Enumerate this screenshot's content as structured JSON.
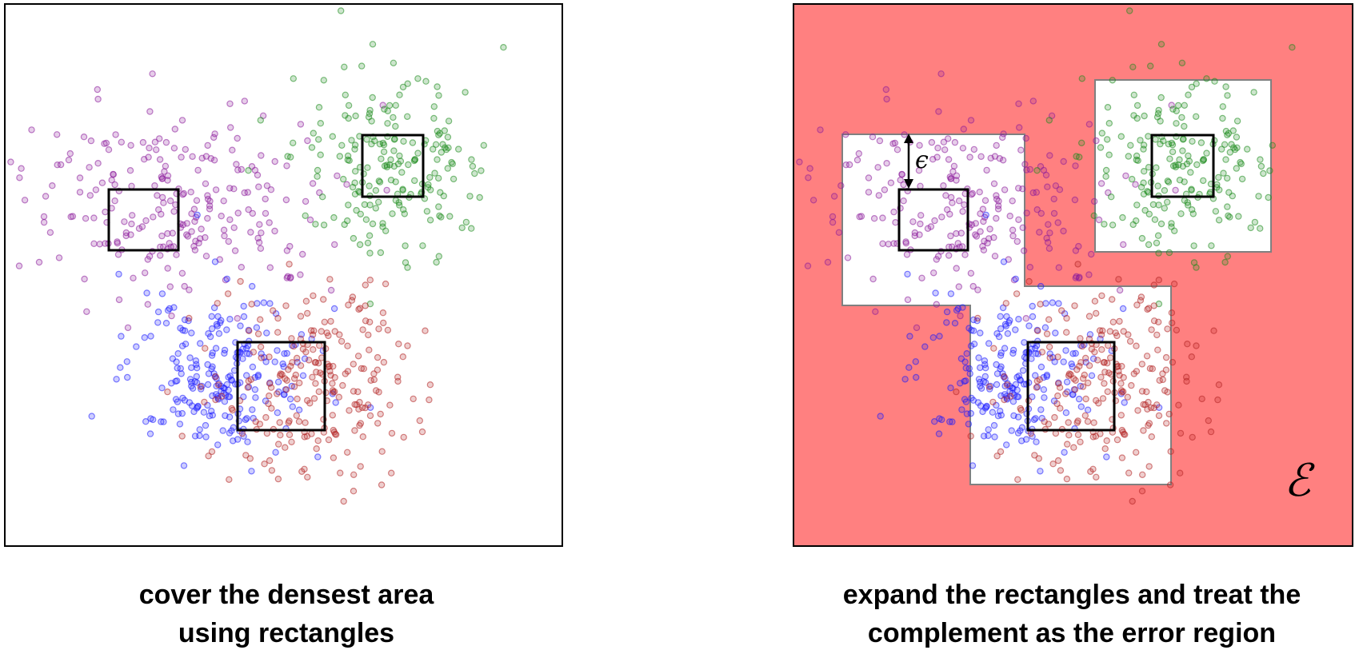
{
  "left_panel": {
    "caption_line1": "cover the densest area",
    "caption_line2": "using rectangles"
  },
  "right_panel": {
    "caption_line1": "expand the rectangles and treat the",
    "caption_line2": "complement as the error region",
    "epsilon_label": "ϵ",
    "error_region_label": "ℰ"
  },
  "colors": {
    "purple": "#8b1a9b",
    "green": "#1a8a1a",
    "blue": "#1a1aff",
    "brown": "#b22222",
    "error_region": "#ff8080",
    "expanded_outline": "#808080",
    "rectangle": "#000000"
  },
  "clusters": [
    {
      "name": "purple",
      "count": 240
    },
    {
      "name": "green",
      "count": 200
    },
    {
      "name": "blue",
      "count": 230
    },
    {
      "name": "brown",
      "count": 230
    }
  ]
}
